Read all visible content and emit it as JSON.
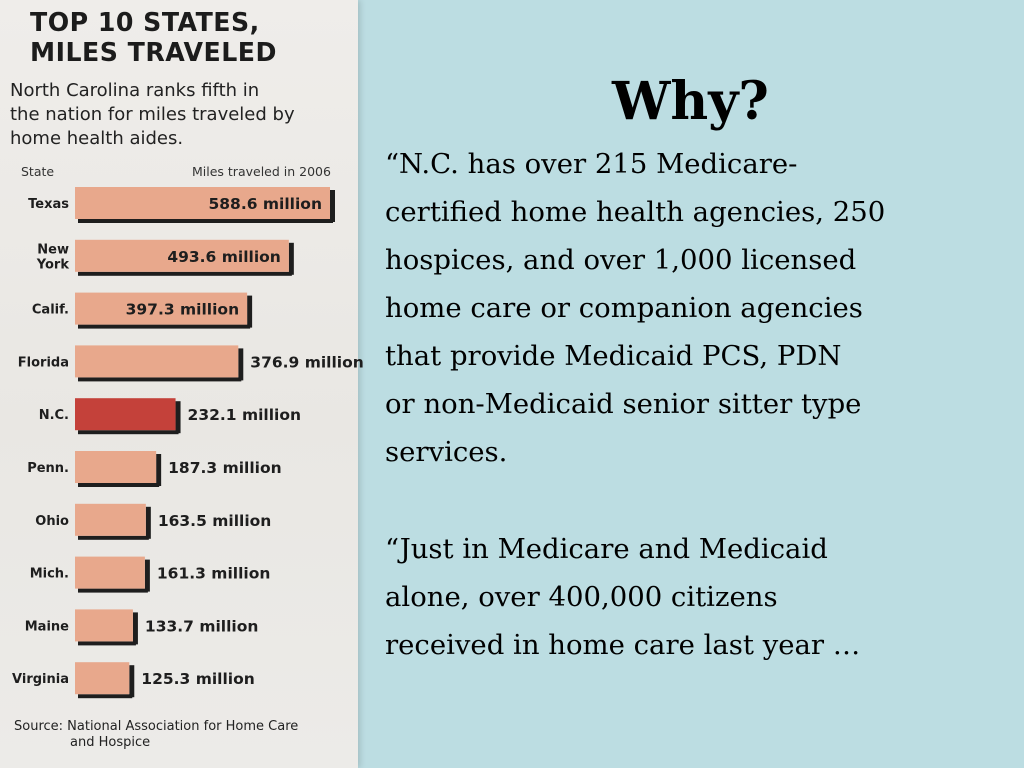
{
  "clipping": {
    "title": "TOP 10 STATES,\nMILES TRAVELED",
    "subtitle": "North Carolina ranks fifth in\nthe nation for miles traveled by\nhome health aides.",
    "source_line1": "Source: National Association for Home Care",
    "source_line2": "and Hospice"
  },
  "chart_data": {
    "type": "bar",
    "orientation": "horizontal",
    "title": "TOP 10 STATES, MILES TRAVELED",
    "subtitle": "North Carolina ranks fifth in the nation for miles traveled by home health aides.",
    "xlabel": "Miles traveled in 2006",
    "ylabel": "State",
    "categories": [
      "Texas",
      "New York",
      "Calif.",
      "Florida",
      "N.C.",
      "Penn.",
      "Ohio",
      "Mich.",
      "Maine",
      "Virginia"
    ],
    "category_lines": [
      [
        "Texas"
      ],
      [
        "New",
        "York"
      ],
      [
        "Calif."
      ],
      [
        "Florida"
      ],
      [
        "N.C."
      ],
      [
        "Penn."
      ],
      [
        "Ohio"
      ],
      [
        "Mich."
      ],
      [
        "Maine"
      ],
      [
        "Virginia"
      ]
    ],
    "values": [
      588.6,
      493.6,
      397.3,
      376.9,
      232.1,
      187.3,
      163.5,
      161.3,
      133.7,
      125.3
    ],
    "labels": [
      "588.6 million",
      "493.6 million",
      "397.3 million",
      "376.9 million",
      "232.1 million",
      "187.3 million",
      "163.5 million",
      "161.3 million",
      "133.7 million",
      "125.3 million"
    ],
    "unit": "million",
    "highlight": "N.C.",
    "xlim": [
      0,
      600
    ],
    "grid": false,
    "legend": "none",
    "colors": {
      "bar": "#e8a88c",
      "highlight": "#c4413a",
      "shadow": "#1e1e1e"
    }
  },
  "slide": {
    "title": "Why?",
    "paragraph1": [
      "“N.C. has over 215 Medicare-",
      "certified home health agencies, 250",
      "hospices, and over 1,000 licensed",
      "home care or companion agencies",
      "that provide Medicaid PCS, PDN",
      "or non-Medicaid senior sitter type",
      "services."
    ],
    "paragraph2": [
      "“Just in Medicare and Medicaid",
      "alone, over 400,000 citizens",
      "received in home care last year …"
    ]
  }
}
